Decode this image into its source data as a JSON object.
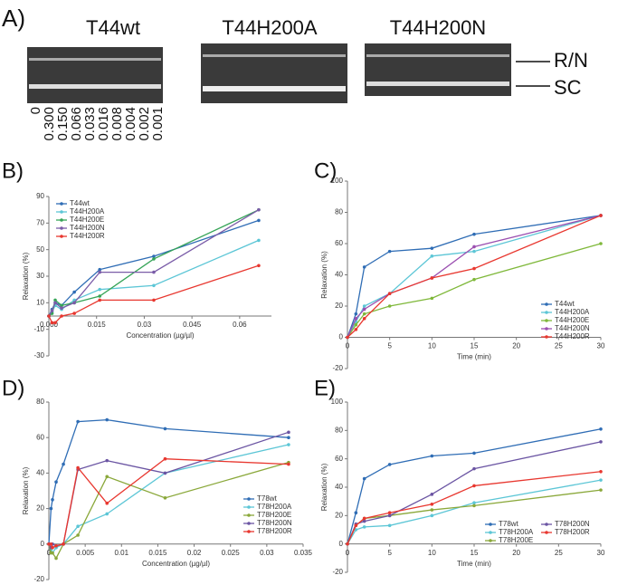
{
  "panel_a": {
    "label": "A)",
    "gel_titles": [
      "T44wt",
      "T44H200A",
      "T44H200N"
    ],
    "band_labels": [
      "R/N",
      "SC"
    ],
    "lane_labels": [
      "0",
      "0.300",
      "0.150",
      "0.066",
      "0.033",
      "0.016",
      "0.008",
      "0.004",
      "0.002",
      "0.001"
    ]
  },
  "chart_data": [
    {
      "type": "line",
      "panel_label": "B)",
      "x_label": "Concentration (µg/µl)",
      "y_label": "Relaxation (%)",
      "legend": "upper left",
      "legend_columns": 1,
      "x": [
        0,
        0.001,
        0.002,
        0.004,
        0.008,
        0.016,
        0.033,
        0.066
      ],
      "xlim": [
        0,
        0.07
      ],
      "xticks": [
        {
          "value": 0,
          "label": "0.000"
        },
        0.015,
        0.03,
        0.045,
        0.06
      ],
      "ylim": [
        -30,
        90
      ],
      "yticks": [
        -30,
        -10,
        10,
        30,
        50,
        70,
        90
      ],
      "series": [
        {
          "name": "T44wt",
          "color": "#2f6db5",
          "values": [
            0,
            5,
            10,
            8,
            18,
            35,
            45,
            72
          ]
        },
        {
          "name": "T44H200A",
          "color": "#5cc6d6",
          "values": [
            0,
            3,
            8,
            5,
            12,
            20,
            23,
            57
          ]
        },
        {
          "name": "T44H200E",
          "color": "#36a457",
          "values": [
            0,
            2,
            12,
            8,
            10,
            15,
            43,
            80
          ]
        },
        {
          "name": "T44H200N",
          "color": "#7a5ca8",
          "values": [
            0,
            4,
            10,
            6,
            10,
            33,
            33,
            80
          ]
        },
        {
          "name": "T44H200R",
          "color": "#e8372f",
          "values": [
            0,
            -5,
            -5,
            0,
            2,
            12,
            12,
            38
          ]
        }
      ]
    },
    {
      "type": "line",
      "panel_label": "C)",
      "x_label": "Time (min)",
      "y_label": "Relaxation (%)",
      "legend": "lower right",
      "legend_columns": 1,
      "x": [
        0,
        1,
        2,
        5,
        10,
        15,
        30
      ],
      "xlim": [
        0,
        30
      ],
      "xticks": [
        0,
        5,
        10,
        15,
        20,
        25,
        30
      ],
      "ylim": [
        -20,
        100
      ],
      "yticks": [
        -20,
        0,
        20,
        40,
        60,
        80,
        100
      ],
      "series": [
        {
          "name": "T44wt",
          "color": "#2f6db5",
          "values": [
            0,
            15,
            45,
            55,
            57,
            66,
            78
          ]
        },
        {
          "name": "T44H200A",
          "color": "#5cc6d6",
          "values": [
            0,
            10,
            20,
            28,
            52,
            55,
            78
          ]
        },
        {
          "name": "T44H200E",
          "color": "#7fb83a",
          "values": [
            0,
            8,
            15,
            20,
            25,
            37,
            60
          ]
        },
        {
          "name": "T44H200N",
          "color": "#9b4fb0",
          "values": [
            0,
            12,
            18,
            28,
            38,
            58,
            78
          ]
        },
        {
          "name": "T44H200R",
          "color": "#e8372f",
          "values": [
            0,
            5,
            12,
            28,
            38,
            44,
            78
          ]
        }
      ]
    },
    {
      "type": "line",
      "panel_label": "D)",
      "x_label": "Concentration (µg/µl)",
      "y_label": "Relaxation (%)",
      "legend": "center right",
      "legend_columns": 1,
      "x": [
        0,
        0.0003,
        0.0005,
        0.001,
        0.002,
        0.004,
        0.008,
        0.016,
        0.033
      ],
      "xlim": [
        0,
        0.035
      ],
      "xticks": [
        0,
        0.005,
        0.01,
        0.015,
        0.02,
        0.025,
        0.03,
        0.035
      ],
      "ylim": [
        -20,
        80
      ],
      "yticks": [
        -20,
        0,
        20,
        40,
        60,
        80
      ],
      "series": [
        {
          "name": "T78wt",
          "color": "#2f6db5",
          "values": [
            0,
            20,
            25,
            35,
            45,
            69,
            70,
            65,
            60
          ]
        },
        {
          "name": "T78H200A",
          "color": "#5cc6d6",
          "values": [
            0,
            -3,
            -5,
            -2,
            0,
            10,
            17,
            40,
            56
          ]
        },
        {
          "name": "T78H200E",
          "color": "#8aa83a",
          "values": [
            0,
            -5,
            -5,
            -8,
            0,
            5,
            38,
            26,
            46
          ]
        },
        {
          "name": "T78H200N",
          "color": "#6b55a3",
          "values": [
            0,
            -2,
            0,
            -1,
            0,
            42,
            47,
            40,
            63
          ]
        },
        {
          "name": "T78H200R",
          "color": "#e8372f",
          "values": [
            0,
            0,
            -2,
            -1,
            0,
            43,
            23,
            48,
            45
          ]
        }
      ]
    },
    {
      "type": "line",
      "panel_label": "E)",
      "x_label": "Time (min)",
      "y_label": "Relaxation (%)",
      "legend": "lower right",
      "legend_columns": 2,
      "x": [
        0,
        1,
        2,
        5,
        10,
        15,
        30
      ],
      "xlim": [
        0,
        30
      ],
      "xticks": [
        0,
        5,
        10,
        15,
        20,
        25,
        30
      ],
      "ylim": [
        -20,
        100
      ],
      "yticks": [
        -20,
        0,
        20,
        40,
        60,
        80,
        100
      ],
      "series": [
        {
          "name": "T78wt",
          "color": "#2f6db5",
          "values": [
            0,
            22,
            46,
            56,
            62,
            64,
            81
          ]
        },
        {
          "name": "T78H200A",
          "color": "#5cc6d6",
          "values": [
            0,
            10,
            12,
            13,
            20,
            29,
            45
          ]
        },
        {
          "name": "T78H200E",
          "color": "#8aa83a",
          "values": [
            0,
            13,
            18,
            20,
            24,
            27,
            38
          ]
        },
        {
          "name": "T78H200N",
          "color": "#6b55a3",
          "values": [
            0,
            14,
            16,
            20,
            35,
            53,
            72
          ]
        },
        {
          "name": "T78H200R",
          "color": "#e8372f",
          "values": [
            0,
            13,
            18,
            22,
            28,
            41,
            51
          ]
        }
      ]
    }
  ]
}
